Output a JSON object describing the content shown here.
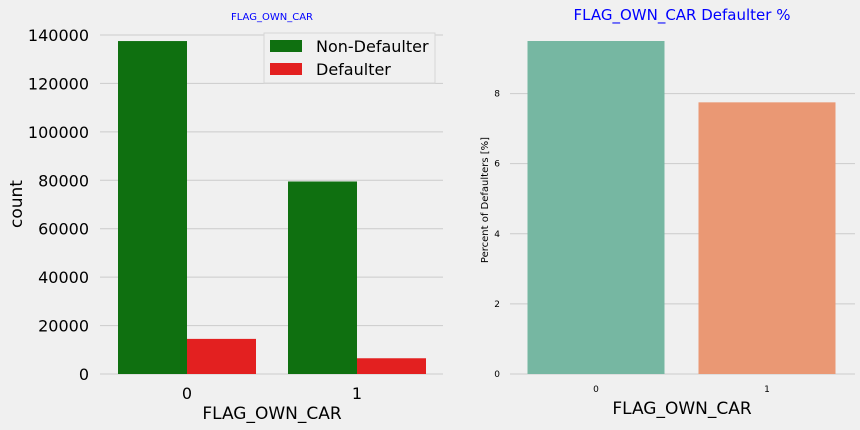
{
  "chart_data": [
    {
      "type": "bar",
      "title": "FLAG_OWN_CAR",
      "title_color": "#0000ff",
      "xlabel": "FLAG_OWN_CAR",
      "ylabel": "count",
      "categories": [
        "0",
        "1"
      ],
      "series": [
        {
          "name": "Non-Defaulter",
          "color": "#0f7010",
          "values": [
            137500,
            79500
          ]
        },
        {
          "name": "Defaulter",
          "color": "#e32020",
          "values": [
            14500,
            6500
          ]
        }
      ],
      "ylim": [
        0,
        140000
      ],
      "yticks": [
        "0",
        "20000",
        "40000",
        "60000",
        "80000",
        "100000",
        "120000",
        "140000"
      ],
      "grid": true,
      "legend": "top-right"
    },
    {
      "type": "bar",
      "title": "FLAG_OWN_CAR Defaulter %",
      "title_color": "#0000ff",
      "xlabel": "FLAG_OWN_CAR",
      "ylabel": "Percent of Defaulters [%]",
      "categories": [
        "0",
        "1"
      ],
      "values": [
        9.5,
        7.75
      ],
      "colors": [
        "#76b7a2",
        "#ea9874"
      ],
      "ylim": [
        0,
        9.5
      ],
      "yticks": [
        "0",
        "2",
        "4",
        "6",
        "8"
      ],
      "grid": true
    }
  ]
}
